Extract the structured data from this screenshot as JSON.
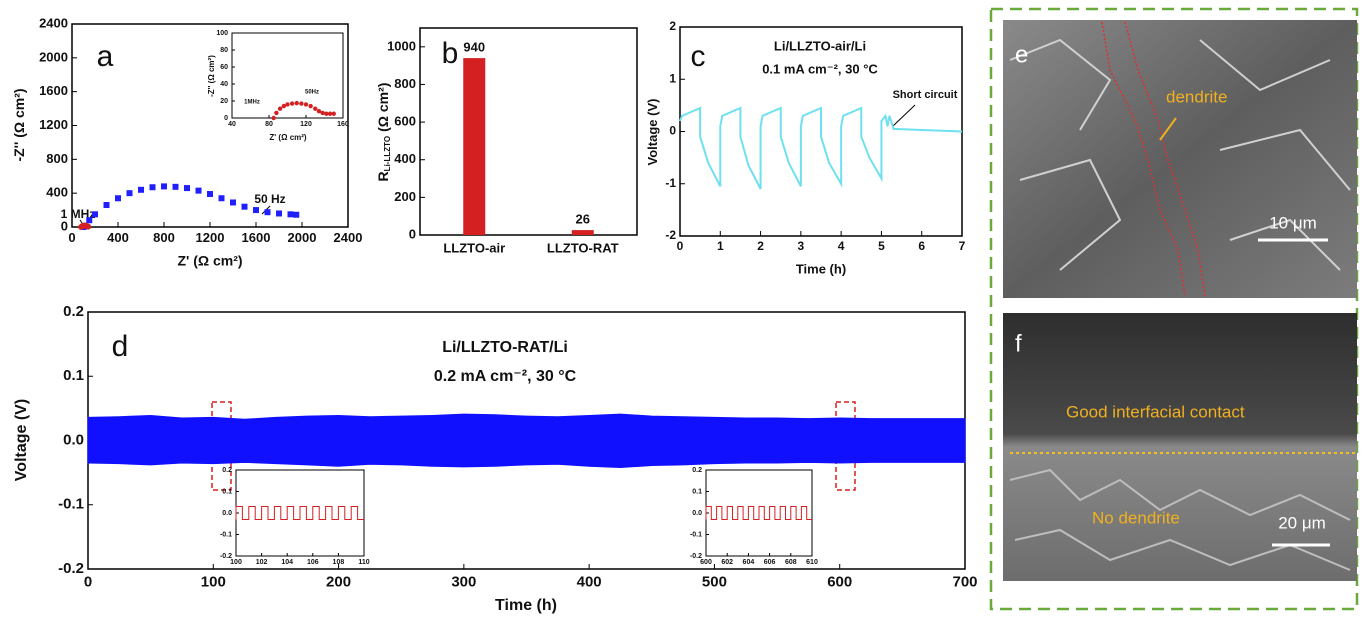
{
  "chart_data": [
    {
      "type": "scatter",
      "panel_label": "a",
      "x_label": "Z' (Ω cm²)",
      "y_label": "-Z'' (Ω cm²)",
      "xlim": [
        0,
        2400
      ],
      "ylim": [
        0,
        2400
      ],
      "xticks": [
        0,
        400,
        800,
        1200,
        1600,
        2000,
        2400
      ],
      "yticks": [
        0,
        400,
        800,
        1200,
        1600,
        2000,
        2400
      ],
      "annotations": [
        "1 MHz",
        "50 Hz"
      ],
      "series": [
        {
          "color": "#1f1fff",
          "marker": "square",
          "x": [
            100,
            150,
            200,
            300,
            400,
            500,
            600,
            700,
            800,
            900,
            1000,
            1100,
            1200,
            1300,
            1400,
            1500,
            1600,
            1700,
            1800,
            1900,
            1950
          ],
          "values": [
            0,
            80,
            150,
            260,
            340,
            400,
            440,
            470,
            480,
            475,
            460,
            430,
            390,
            340,
            290,
            240,
            200,
            175,
            160,
            150,
            145
          ]
        },
        {
          "color": "#d42020",
          "marker": "circle",
          "x": [
            80,
            90,
            100,
            110,
            120,
            130,
            140
          ],
          "values": [
            0,
            10,
            15,
            17,
            15,
            10,
            5
          ]
        }
      ]
    },
    {
      "type": "scatter",
      "x_label": "Z' (Ω cm²)",
      "y_label": "-Z'' (Ω cm²)",
      "xlim": [
        40,
        160
      ],
      "ylim": [
        0,
        100
      ],
      "xticks": [
        40,
        80,
        120,
        160
      ],
      "yticks": [
        0,
        20,
        40,
        60,
        80,
        100
      ],
      "annotations": [
        "1MHz",
        "50Hz"
      ],
      "series": [
        {
          "color": "#d42020",
          "marker": "circle",
          "x": [
            85,
            88,
            92,
            96,
            100,
            105,
            110,
            115,
            120,
            125,
            130,
            134,
            138,
            142,
            146,
            150
          ],
          "values": [
            0,
            6,
            11,
            14,
            16,
            17,
            17.5,
            17,
            16,
            14,
            11,
            8,
            6,
            5,
            5,
            5
          ]
        }
      ]
    },
    {
      "type": "bar",
      "panel_label": "b",
      "y_label": "R",
      "y_label_sub": "Li-LLZTO",
      "y_label_unit": "(Ω cm²)",
      "categories": [
        "LLZTO-air",
        "LLZTO-RAT"
      ],
      "values": [
        940,
        26
      ],
      "color": "#d42020",
      "ylim": [
        0,
        1100
      ],
      "yticks": [
        0,
        200,
        400,
        600,
        800,
        1000
      ]
    },
    {
      "type": "line",
      "panel_label": "c",
      "title": "Li/LLZTO-air/Li",
      "subtitle": "0.1 mA cm⁻², 30 °C",
      "x_label": "Time (h)",
      "y_label": "Voltage (V)",
      "annotations": [
        "Short circuit"
      ],
      "xlim": [
        0,
        7
      ],
      "ylim": [
        -2,
        2
      ],
      "xticks": [
        0,
        1,
        2,
        3,
        4,
        5,
        6,
        7
      ],
      "yticks": [
        -2,
        -1,
        0,
        1,
        2
      ],
      "series": [
        {
          "color": "#6fe0f0",
          "x": [
            0,
            0.05,
            0.5,
            0.5,
            0.7,
            1.0,
            1.0,
            1.05,
            1.5,
            1.5,
            1.7,
            2.0,
            2.0,
            2.05,
            2.5,
            2.5,
            2.7,
            3.0,
            3.0,
            3.05,
            3.5,
            3.5,
            3.7,
            4.0,
            4.0,
            4.05,
            4.5,
            4.5,
            4.7,
            5.0,
            5.0,
            5.1,
            5.15,
            5.2,
            5.3,
            7.0
          ],
          "values": [
            0.2,
            0.3,
            0.45,
            -0.1,
            -0.6,
            -1.05,
            0.1,
            0.3,
            0.45,
            -0.1,
            -0.65,
            -1.1,
            0.1,
            0.3,
            0.45,
            -0.1,
            -0.6,
            -1.05,
            0.1,
            0.3,
            0.45,
            -0.1,
            -0.6,
            -1.0,
            0.1,
            0.3,
            0.45,
            -0.1,
            -0.5,
            -0.9,
            0.2,
            0.3,
            0.1,
            0.3,
            0.05,
            0.0
          ]
        }
      ]
    },
    {
      "type": "area",
      "panel_label": "d",
      "title": "Li/LLZTO-RAT/Li",
      "subtitle": "0.2 mA cm⁻², 30 °C",
      "x_label": "Time (h)",
      "y_label": "Voltage (V)",
      "xlim": [
        0,
        700
      ],
      "ylim": [
        -0.2,
        0.2
      ],
      "xticks": [
        0,
        100,
        200,
        300,
        400,
        500,
        600,
        700
      ],
      "yticks": [
        -0.2,
        -0.1,
        {
          "value": 0,
          "label": "0.0"
        },
        0.1,
        0.2
      ],
      "series": [
        {
          "color": "#1010ff",
          "x": [
            0,
            25,
            50,
            75,
            100,
            125,
            150,
            175,
            200,
            225,
            250,
            275,
            300,
            325,
            350,
            375,
            400,
            425,
            450,
            475,
            500,
            525,
            550,
            575,
            600,
            625,
            650,
            675,
            700
          ],
          "values": [
            0.036,
            0.037,
            0.039,
            0.035,
            0.036,
            0.033,
            0.036,
            0.038,
            0.039,
            0.037,
            0.038,
            0.039,
            0.041,
            0.04,
            0.038,
            0.037,
            0.039,
            0.041,
            0.038,
            0.037,
            0.036,
            0.035,
            0.035,
            0.034,
            0.035,
            0.034,
            0.034,
            0.034,
            0.034
          ]
        },
        {
          "color": "#1010ff",
          "x": [
            0,
            25,
            50,
            75,
            100,
            125,
            150,
            175,
            200,
            225,
            250,
            275,
            300,
            325,
            350,
            375,
            400,
            425,
            450,
            475,
            500,
            525,
            550,
            575,
            600,
            625,
            650,
            675,
            700
          ],
          "values": [
            -0.035,
            -0.036,
            -0.038,
            -0.035,
            -0.036,
            -0.034,
            -0.036,
            -0.038,
            -0.04,
            -0.037,
            -0.038,
            -0.04,
            -0.041,
            -0.04,
            -0.038,
            -0.037,
            -0.04,
            -0.042,
            -0.039,
            -0.038,
            -0.036,
            -0.035,
            -0.035,
            -0.034,
            -0.035,
            -0.034,
            -0.034,
            -0.034,
            -0.034
          ]
        }
      ]
    },
    {
      "type": "line",
      "xlim": [
        100,
        110
      ],
      "ylim": [
        -0.2,
        0.2
      ],
      "xticks": [
        100,
        102,
        104,
        106,
        108,
        110
      ],
      "yticks": [
        -0.2,
        -0.1,
        {
          "value": 0,
          "label": "0.0"
        },
        0.1,
        0.2
      ],
      "series": [
        {
          "color": "#d42020",
          "x": [
            100,
            100,
            100.5,
            100.5,
            101,
            101,
            101.5,
            101.5,
            102,
            102,
            102.5,
            102.5,
            103,
            103,
            103.5,
            103.5,
            104,
            104,
            104.5,
            104.5,
            105,
            105,
            105.5,
            105.5,
            106,
            106,
            106.5,
            106.5,
            107,
            107,
            107.5,
            107.5,
            108,
            108,
            108.5,
            108.5,
            109,
            109,
            109.5,
            109.5,
            110
          ],
          "values": [
            -0.03,
            0.03,
            0.03,
            -0.03,
            -0.03,
            0.03,
            0.03,
            -0.03,
            -0.03,
            0.03,
            0.03,
            -0.03,
            -0.03,
            0.03,
            0.03,
            -0.03,
            -0.03,
            0.03,
            0.03,
            -0.03,
            -0.03,
            0.03,
            0.03,
            -0.03,
            -0.03,
            0.03,
            0.03,
            -0.03,
            -0.03,
            0.03,
            0.03,
            -0.03,
            -0.03,
            0.03,
            0.03,
            -0.03,
            -0.03,
            0.03,
            0.03,
            -0.03,
            -0.03
          ]
        }
      ]
    },
    {
      "type": "line",
      "xlim": [
        600,
        610
      ],
      "ylim": [
        -0.2,
        0.2
      ],
      "xticks": [
        600,
        602,
        604,
        606,
        608,
        610
      ],
      "yticks": [
        -0.2,
        -0.1,
        {
          "value": 0,
          "label": "0.0"
        },
        0.1,
        0.2
      ],
      "series": [
        {
          "color": "#d42020",
          "x": [
            600,
            600,
            600.5,
            600.5,
            601,
            601,
            601.5,
            601.5,
            602,
            602,
            602.5,
            602.5,
            603,
            603,
            603.5,
            603.5,
            604,
            604,
            604.5,
            604.5,
            605,
            605,
            605.5,
            605.5,
            606,
            606,
            606.5,
            606.5,
            607,
            607,
            607.5,
            607.5,
            608,
            608,
            608.5,
            608.5,
            609,
            609,
            609.5,
            609.5,
            610
          ],
          "values": [
            -0.03,
            0.03,
            0.03,
            -0.03,
            -0.03,
            0.03,
            0.03,
            -0.03,
            -0.03,
            0.03,
            0.03,
            -0.03,
            -0.03,
            0.03,
            0.03,
            -0.03,
            -0.03,
            0.03,
            0.03,
            -0.03,
            -0.03,
            0.03,
            0.03,
            -0.03,
            -0.03,
            0.03,
            0.03,
            -0.03,
            -0.03,
            0.03,
            0.03,
            -0.03,
            -0.03,
            0.03,
            0.03,
            -0.03,
            -0.03,
            0.03,
            0.03,
            -0.03,
            -0.03
          ]
        }
      ]
    }
  ],
  "micrographs": [
    {
      "label": "e",
      "annotations": [
        "dendrite"
      ],
      "scale_bar": "10 μm"
    },
    {
      "label": "f",
      "annotations": [
        "Good interfacial contact",
        "No dendrite"
      ],
      "scale_bar": "20 μm"
    }
  ]
}
